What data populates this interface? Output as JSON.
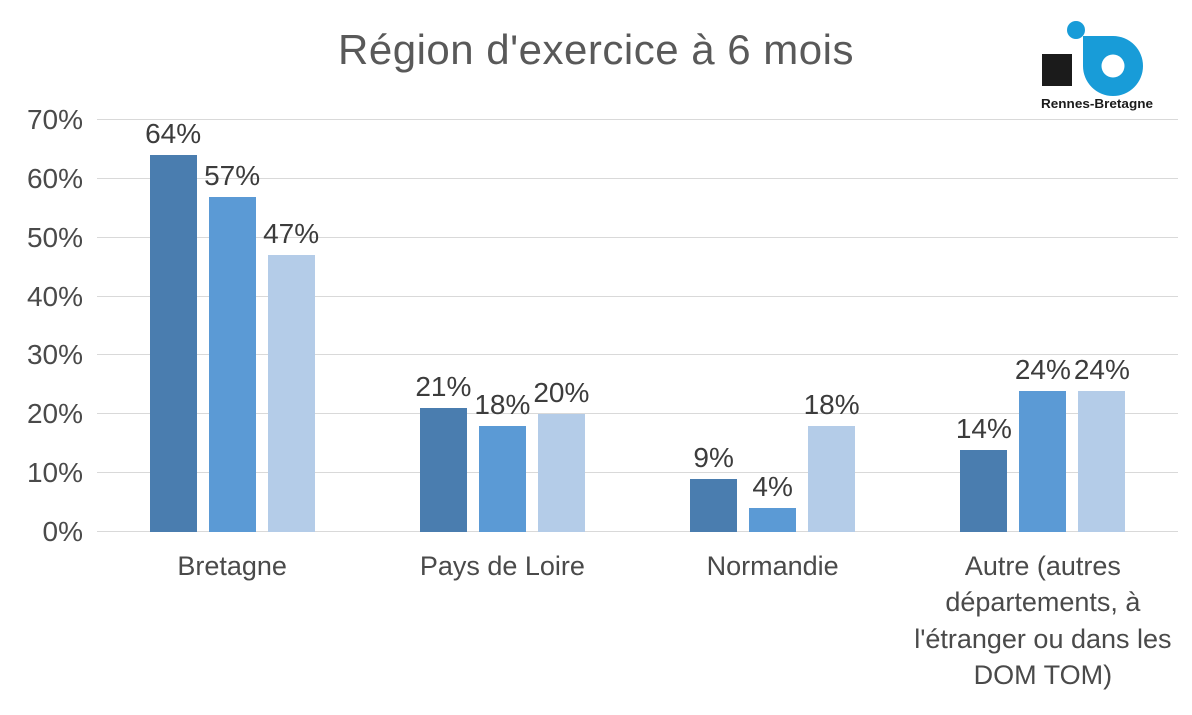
{
  "title": "Région d'exercice à 6 mois",
  "logo": {
    "text": "Rennes-Bretagne",
    "colors": {
      "blue": "#189CD8",
      "black": "#1B1B1B"
    }
  },
  "colors": {
    "background": "#FFFFFF",
    "title": "#595959",
    "axis_text": "#4A4A4A",
    "data_label": "#3C3C3C",
    "gridline": "#D9D9D9"
  },
  "chart_data": {
    "type": "bar",
    "title": "Région d'exercice à 6 mois",
    "categories": [
      "Bretagne",
      "Pays de Loire",
      "Normandie",
      "Autre (autres départements, à l'étranger ou dans les DOM TOM)"
    ],
    "series": [
      {
        "color": "#4A7DAF",
        "values": [
          64,
          21,
          9,
          14
        ],
        "labels": [
          "64%",
          "21%",
          "9%",
          "14%"
        ]
      },
      {
        "color": "#5B9AD5",
        "values": [
          57,
          18,
          4,
          24
        ],
        "labels": [
          "57%",
          "18%",
          "4%",
          "24%"
        ]
      },
      {
        "color": "#B4CCE8",
        "values": [
          47,
          20,
          18,
          24
        ],
        "labels": [
          "47%",
          "20%",
          "18%",
          "24%"
        ]
      }
    ],
    "unit": "%",
    "ylim": [
      0,
      70
    ],
    "yticks": [
      "0%",
      "10%",
      "20%",
      "30%",
      "40%",
      "50%",
      "60%",
      "70%"
    ],
    "grid": true,
    "legend": "none",
    "data_labels_position": "outside-end"
  }
}
